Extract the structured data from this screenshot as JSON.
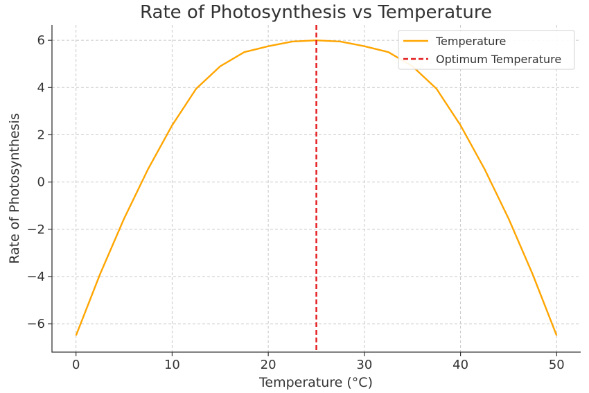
{
  "chart_data": {
    "type": "line",
    "title": "Rate of Photosynthesis vs Temperature",
    "xlabel": "Temperature (°C)",
    "ylabel": "Rate of Photosynthesis",
    "xlim": [
      -2.5,
      52.5
    ],
    "ylim": [
      -7.2,
      6.65
    ],
    "xticks": [
      0,
      10,
      20,
      30,
      40,
      50
    ],
    "yticks": [
      -6,
      -4,
      -2,
      0,
      2,
      4,
      6
    ],
    "xtick_labels": [
      "0",
      "10",
      "20",
      "30",
      "40",
      "50"
    ],
    "ytick_labels": [
      "−6",
      "−4",
      "−2",
      "0",
      "2",
      "4",
      "6"
    ],
    "grid": true,
    "legend_position": "top-right",
    "series": [
      {
        "name": "Temperature",
        "color": "#ffa500",
        "style": "solid",
        "x": [
          0,
          2.5,
          5,
          7.5,
          10,
          12.5,
          15,
          17.5,
          20,
          22.5,
          25,
          27.5,
          30,
          32.5,
          35,
          37.5,
          40,
          42.5,
          45,
          47.5,
          50
        ],
        "y": [
          -6.5,
          -3.9,
          -1.55,
          0.55,
          2.4,
          3.95,
          4.9,
          5.5,
          5.75,
          5.95,
          6.0,
          5.95,
          5.75,
          5.5,
          4.9,
          3.95,
          2.4,
          0.55,
          -1.55,
          -3.9,
          -6.5
        ]
      }
    ],
    "reference_lines": [
      {
        "name": "Optimum Temperature",
        "orientation": "vertical",
        "x": 25,
        "color": "#e31a1c",
        "style": "dashed"
      }
    ]
  }
}
